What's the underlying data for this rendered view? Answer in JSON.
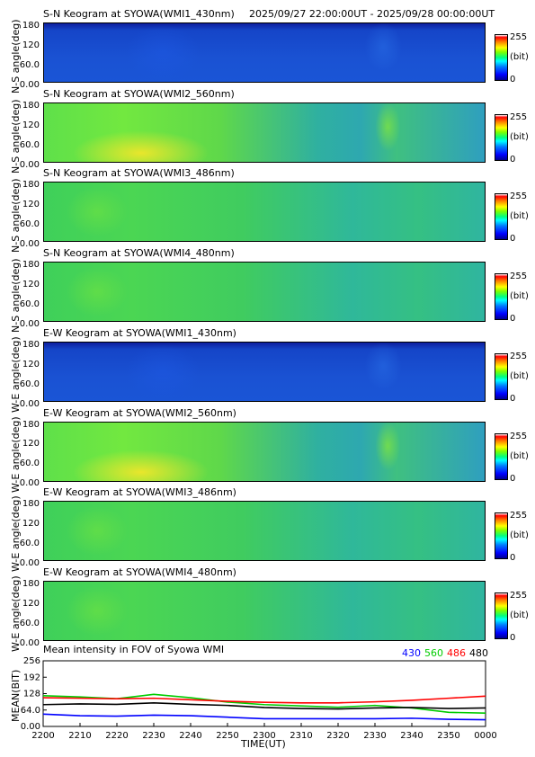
{
  "header": {
    "range": "2025/09/27 22:00:00UT - 2025/09/28 00:00:00UT"
  },
  "colors": {
    "c430": "#0000ff",
    "c560": "#00cc00",
    "c486": "#ff0000",
    "c480": "#000000"
  },
  "panels": [
    {
      "title": "S-N Keogram at SYOWA(WMI1_430nm)",
      "ylabel": "N-S angle(deg)",
      "base": "blue"
    },
    {
      "title": "S-N Keogram at SYOWA(WMI2_560nm)",
      "ylabel": "N-S angle(deg)",
      "base": "green-bright"
    },
    {
      "title": "S-N Keogram at SYOWA(WMI3_486nm)",
      "ylabel": "N-S angle(deg)",
      "base": "green"
    },
    {
      "title": "S-N Keogram at SYOWA(WMI4_480nm)",
      "ylabel": "N-S angle(deg)",
      "base": "green"
    },
    {
      "title": "E-W Keogram at SYOWA(WMI1_430nm)",
      "ylabel": "W-E angle(deg)",
      "base": "blue"
    },
    {
      "title": "E-W Keogram at SYOWA(WMI2_560nm)",
      "ylabel": "W-E angle(deg)",
      "base": "green-bright"
    },
    {
      "title": "E-W Keogram at SYOWA(WMI3_486nm)",
      "ylabel": "W-E angle(deg)",
      "base": "green"
    },
    {
      "title": "E-W Keogram at SYOWA(WMI4_480nm)",
      "ylabel": "W-E angle(deg)",
      "base": "green"
    }
  ],
  "keogram_yticks": [
    "180",
    "120",
    "60.0",
    "0.00"
  ],
  "colorbar": {
    "max": "255",
    "unit": "(bit)",
    "min": "0"
  },
  "chart_data": {
    "type": "line",
    "title": "Mean intensity in FOV of Syowa WMI",
    "xlabel": "TIME(UT)",
    "ylabel": "MEAN(BIT)",
    "ylim": [
      0,
      256
    ],
    "yticks": [
      "256",
      "192",
      "128",
      "64.0",
      "0.00"
    ],
    "ytick_values": [
      256,
      192,
      128,
      64,
      0
    ],
    "xlim": [
      0,
      120
    ],
    "xtick_labels": [
      "2200",
      "2210",
      "2220",
      "2230",
      "2240",
      "2250",
      "2300",
      "2310",
      "2320",
      "2330",
      "2340",
      "2350",
      "0000"
    ],
    "xtick_values": [
      0,
      10,
      20,
      30,
      40,
      50,
      60,
      70,
      80,
      90,
      100,
      110,
      120
    ],
    "legend": [
      "430",
      "560",
      "486",
      "480"
    ],
    "x": [
      0,
      10,
      20,
      30,
      40,
      50,
      60,
      70,
      80,
      90,
      100,
      110,
      120
    ],
    "series": [
      {
        "name": "430",
        "color": "#0000ff",
        "values": [
          48,
          42,
          40,
          44,
          42,
          36,
          30,
          30,
          30,
          30,
          32,
          28,
          26
        ]
      },
      {
        "name": "560",
        "color": "#00cc00",
        "values": [
          120,
          115,
          108,
          125,
          112,
          95,
          85,
          80,
          75,
          82,
          72,
          55,
          52
        ]
      },
      {
        "name": "486",
        "color": "#ff0000",
        "values": [
          112,
          110,
          108,
          110,
          104,
          98,
          94,
          92,
          92,
          96,
          102,
          110,
          118
        ]
      },
      {
        "name": "480",
        "color": "#000000",
        "values": [
          85,
          88,
          86,
          92,
          86,
          82,
          74,
          70,
          68,
          72,
          74,
          70,
          72
        ]
      }
    ]
  }
}
